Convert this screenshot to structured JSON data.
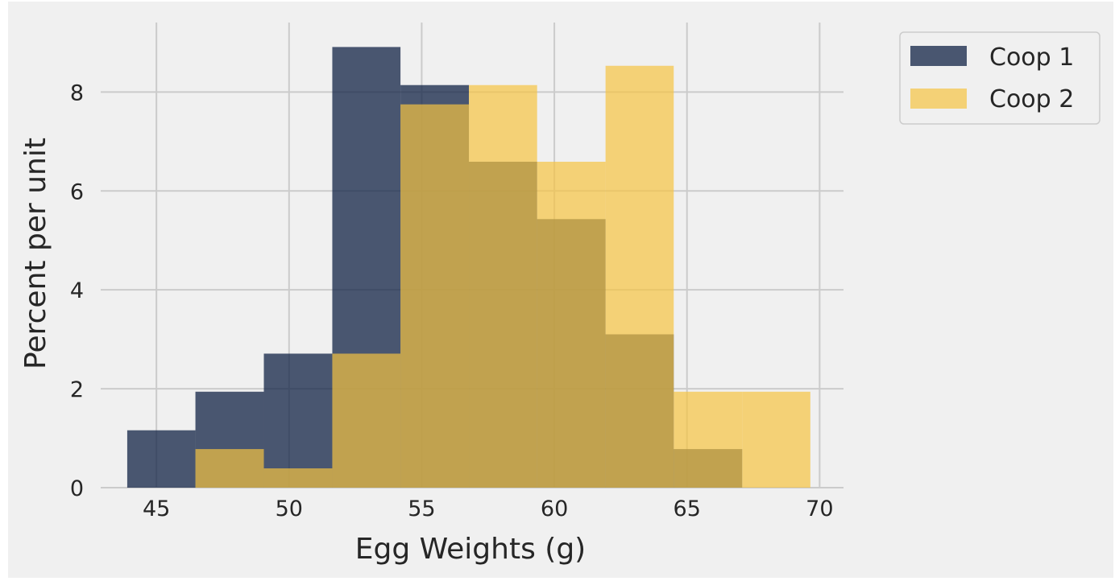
{
  "chart_data": {
    "type": "histogram",
    "xlabel": "Egg Weights (g)",
    "ylabel": "Percent per unit",
    "xlim": [
      42.9,
      70.9
    ],
    "ylim": [
      0,
      9.6
    ],
    "x_ticks": [
      "45",
      "50",
      "55",
      "60",
      "65",
      "70"
    ],
    "y_ticks": [
      "0",
      "2",
      "4",
      "6",
      "8"
    ],
    "grid": true,
    "legend_position": "outside-right-top",
    "bin_edges": [
      43.9,
      46.47,
      49.05,
      51.63,
      54.2,
      56.78,
      59.35,
      61.93,
      64.5,
      67.08,
      69.65
    ],
    "series": [
      {
        "name": "Coop 1",
        "color": "#112345",
        "opacity": 0.75,
        "values": [
          1.16,
          1.94,
          2.71,
          8.91,
          8.14,
          6.59,
          5.43,
          3.1,
          0.78,
          0.0
        ]
      },
      {
        "name": "Coop 2",
        "color": "#f5c342",
        "opacity": 0.7,
        "values": [
          0.0,
          0.78,
          0.39,
          2.71,
          7.75,
          8.14,
          6.59,
          8.53,
          1.94,
          1.94
        ]
      }
    ]
  }
}
